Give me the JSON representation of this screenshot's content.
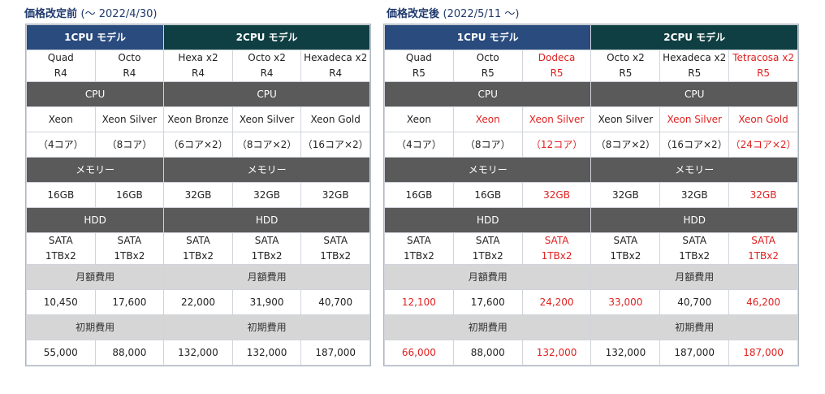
{
  "left": {
    "title": "価格改定前",
    "subtitle": "(～ 2022/4/30)",
    "col_count": 5,
    "groups": [
      {
        "label": "1CPU モデル",
        "span": 2,
        "style": "hdr-blue"
      },
      {
        "label": "2CPU モデル",
        "span": 3,
        "style": "hdr-green"
      }
    ],
    "rows": [
      {
        "type": "cell2",
        "cells": [
          {
            "lines": [
              "Quad",
              "R4"
            ]
          },
          {
            "lines": [
              "Octo",
              "R4"
            ]
          },
          {
            "lines": [
              "Hexa x2",
              "R4"
            ]
          },
          {
            "lines": [
              "Octo x2",
              "R4"
            ]
          },
          {
            "lines": [
              "Hexadeca x2",
              "R4"
            ]
          }
        ]
      },
      {
        "type": "sec-dark",
        "sections": [
          {
            "label": "CPU",
            "span": 2
          },
          {
            "label": "CPU",
            "span": 3
          }
        ]
      },
      {
        "type": "cell",
        "cells": [
          {
            "lines": [
              "Xeon"
            ]
          },
          {
            "lines": [
              "Xeon Silver"
            ]
          },
          {
            "lines": [
              "Xeon Bronze"
            ]
          },
          {
            "lines": [
              "Xeon Silver"
            ]
          },
          {
            "lines": [
              "Xeon Gold"
            ]
          }
        ]
      },
      {
        "type": "cell",
        "cells": [
          {
            "lines": [
              "（4コア）"
            ]
          },
          {
            "lines": [
              "（8コア）"
            ]
          },
          {
            "lines": [
              "（6コア×2）"
            ]
          },
          {
            "lines": [
              "（8コア×2）"
            ]
          },
          {
            "lines": [
              "（16コア×2）"
            ]
          }
        ]
      },
      {
        "type": "sec-dark",
        "sections": [
          {
            "label": "メモリー",
            "span": 2
          },
          {
            "label": "メモリー",
            "span": 3
          }
        ]
      },
      {
        "type": "cell",
        "cells": [
          {
            "lines": [
              "16GB"
            ]
          },
          {
            "lines": [
              "16GB"
            ]
          },
          {
            "lines": [
              "32GB"
            ]
          },
          {
            "lines": [
              "32GB"
            ]
          },
          {
            "lines": [
              "32GB"
            ]
          }
        ]
      },
      {
        "type": "sec-dark",
        "sections": [
          {
            "label": "HDD",
            "span": 2
          },
          {
            "label": "HDD",
            "span": 3
          }
        ]
      },
      {
        "type": "cell2",
        "cells": [
          {
            "lines": [
              "SATA",
              "1TBx2"
            ]
          },
          {
            "lines": [
              "SATA",
              "1TBx2"
            ]
          },
          {
            "lines": [
              "SATA",
              "1TBx2"
            ]
          },
          {
            "lines": [
              "SATA",
              "1TBx2"
            ]
          },
          {
            "lines": [
              "SATA",
              "1TBx2"
            ]
          }
        ]
      },
      {
        "type": "sec-light",
        "sections": [
          {
            "label": "月額費用",
            "span": 2
          },
          {
            "label": "月額費用",
            "span": 3
          }
        ]
      },
      {
        "type": "cell",
        "cells": [
          {
            "lines": [
              "10,450"
            ]
          },
          {
            "lines": [
              "17,600"
            ]
          },
          {
            "lines": [
              "22,000"
            ]
          },
          {
            "lines": [
              "31,900"
            ]
          },
          {
            "lines": [
              "40,700"
            ]
          }
        ]
      },
      {
        "type": "sec-light",
        "sections": [
          {
            "label": "初期費用",
            "span": 2
          },
          {
            "label": "初期費用",
            "span": 3
          }
        ]
      },
      {
        "type": "cell",
        "cells": [
          {
            "lines": [
              "55,000"
            ]
          },
          {
            "lines": [
              "88,000"
            ]
          },
          {
            "lines": [
              "132,000"
            ]
          },
          {
            "lines": [
              "132,000"
            ]
          },
          {
            "lines": [
              "187,000"
            ]
          }
        ]
      }
    ]
  },
  "right": {
    "title": "価格改定後",
    "subtitle": "(2022/5/11 ～)",
    "col_count": 6,
    "groups": [
      {
        "label": "1CPU モデル",
        "span": 3,
        "style": "hdr-blue"
      },
      {
        "label": "2CPU モデル",
        "span": 3,
        "style": "hdr-green"
      }
    ],
    "rows": [
      {
        "type": "cell2",
        "cells": [
          {
            "lines": [
              "Quad",
              "R5"
            ]
          },
          {
            "lines": [
              "Octo",
              "R5"
            ]
          },
          {
            "lines": [
              "Dodeca",
              "R5"
            ],
            "red": true
          },
          {
            "lines": [
              "Octo x2",
              "R5"
            ]
          },
          {
            "lines": [
              "Hexadeca x2",
              "R5"
            ]
          },
          {
            "lines": [
              "Tetracosa x2",
              "R5"
            ],
            "red": true
          }
        ]
      },
      {
        "type": "sec-dark",
        "sections": [
          {
            "label": "CPU",
            "span": 3
          },
          {
            "label": "CPU",
            "span": 3
          }
        ]
      },
      {
        "type": "cell",
        "cells": [
          {
            "lines": [
              "Xeon"
            ]
          },
          {
            "lines": [
              "Xeon"
            ],
            "red": true
          },
          {
            "lines": [
              "Xeon Silver"
            ],
            "red": true
          },
          {
            "lines": [
              "Xeon Silver"
            ]
          },
          {
            "lines": [
              "Xeon Silver"
            ],
            "red": true
          },
          {
            "lines": [
              "Xeon Gold"
            ],
            "red": true
          }
        ]
      },
      {
        "type": "cell",
        "cells": [
          {
            "lines": [
              "（4コア）"
            ]
          },
          {
            "lines": [
              "（8コア）"
            ]
          },
          {
            "lines": [
              "（12コア）"
            ],
            "red": true
          },
          {
            "lines": [
              "（8コア×2）"
            ]
          },
          {
            "lines": [
              "（16コア×2）"
            ]
          },
          {
            "lines": [
              "（24コア×2）"
            ],
            "red": true
          }
        ]
      },
      {
        "type": "sec-dark",
        "sections": [
          {
            "label": "メモリー",
            "span": 3
          },
          {
            "label": "メモリー",
            "span": 3
          }
        ]
      },
      {
        "type": "cell",
        "cells": [
          {
            "lines": [
              "16GB"
            ]
          },
          {
            "lines": [
              "16GB"
            ]
          },
          {
            "lines": [
              "32GB"
            ],
            "red": true
          },
          {
            "lines": [
              "32GB"
            ]
          },
          {
            "lines": [
              "32GB"
            ]
          },
          {
            "lines": [
              "32GB"
            ],
            "red": true
          }
        ]
      },
      {
        "type": "sec-dark",
        "sections": [
          {
            "label": "HDD",
            "span": 3
          },
          {
            "label": "HDD",
            "span": 3
          }
        ]
      },
      {
        "type": "cell2",
        "cells": [
          {
            "lines": [
              "SATA",
              "1TBx2"
            ]
          },
          {
            "lines": [
              "SATA",
              "1TBx2"
            ]
          },
          {
            "lines": [
              "SATA",
              "1TBx2"
            ],
            "red": true
          },
          {
            "lines": [
              "SATA",
              "1TBx2"
            ]
          },
          {
            "lines": [
              "SATA",
              "1TBx2"
            ]
          },
          {
            "lines": [
              "SATA",
              "1TBx2"
            ],
            "red": true
          }
        ]
      },
      {
        "type": "sec-light",
        "sections": [
          {
            "label": "月額費用",
            "span": 3
          },
          {
            "label": "月額費用",
            "span": 3
          }
        ]
      },
      {
        "type": "cell",
        "cells": [
          {
            "lines": [
              "12,100"
            ],
            "red": true
          },
          {
            "lines": [
              "17,600"
            ]
          },
          {
            "lines": [
              "24,200"
            ],
            "red": true
          },
          {
            "lines": [
              "33,000"
            ],
            "red": true
          },
          {
            "lines": [
              "40,700"
            ]
          },
          {
            "lines": [
              "46,200"
            ],
            "red": true
          }
        ]
      },
      {
        "type": "sec-light",
        "sections": [
          {
            "label": "初期費用",
            "span": 3
          },
          {
            "label": "初期費用",
            "span": 3
          }
        ]
      },
      {
        "type": "cell",
        "cells": [
          {
            "lines": [
              "66,000"
            ],
            "red": true
          },
          {
            "lines": [
              "88,000"
            ]
          },
          {
            "lines": [
              "132,000"
            ],
            "red": true
          },
          {
            "lines": [
              "132,000"
            ]
          },
          {
            "lines": [
              "187,000"
            ]
          },
          {
            "lines": [
              "187,000"
            ],
            "red": true
          }
        ]
      }
    ]
  },
  "colors": {
    "title_blue": "#1f3a6e",
    "header_1cpu": "#294b7d",
    "header_2cpu": "#0f3f42",
    "section_dark": "#5a5a5a",
    "section_light": "#d6d6d6",
    "changed_red": "#e02020"
  }
}
